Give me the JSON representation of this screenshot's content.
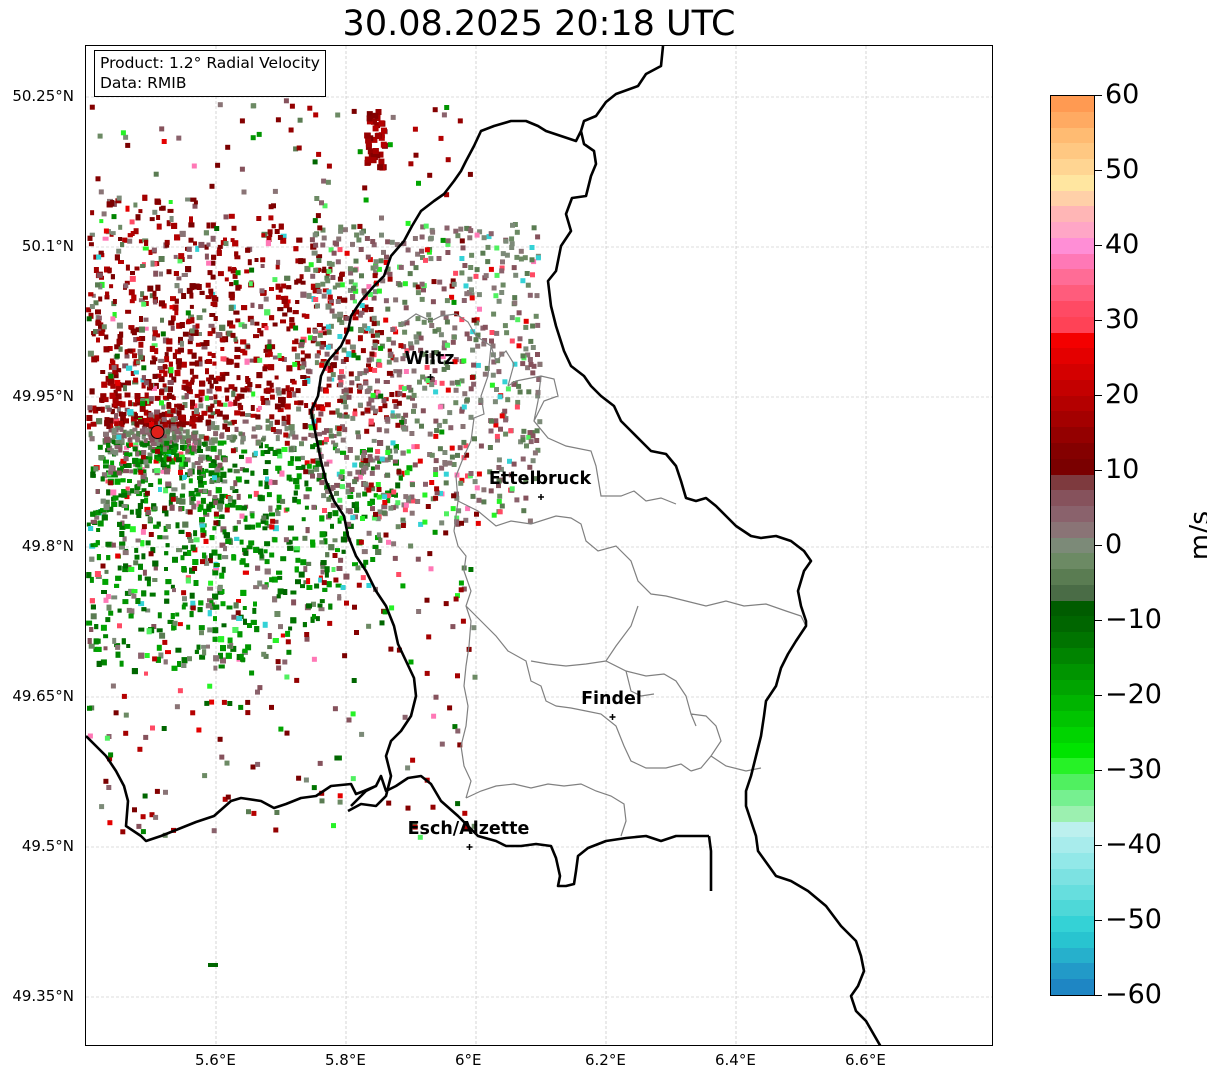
{
  "title": "30.08.2025 20:18 UTC",
  "info": {
    "product": "Product: 1.2° Radial Velocity",
    "data": "Data: RMIB"
  },
  "axes": {
    "lat_ticks": [
      "50.25°N",
      "50.1°N",
      "49.95°N",
      "49.8°N",
      "49.65°N",
      "49.5°N",
      "49.35°N"
    ],
    "lon_ticks": [
      "5.6°E",
      "5.8°E",
      "6°E",
      "6.2°E",
      "6.4°E",
      "6.6°E"
    ],
    "gridlines": true
  },
  "cities": [
    {
      "name": "Wiltz",
      "lon": 5.93,
      "lat": 49.97
    },
    {
      "name": "Ettelbruck",
      "lon": 6.1,
      "lat": 49.85
    },
    {
      "name": "Findel",
      "lon": 6.21,
      "lat": 49.63
    },
    {
      "name": "Esch/Alzette",
      "lon": 5.99,
      "lat": 49.5
    }
  ],
  "radar": {
    "lon": 5.51,
    "lat": 49.915,
    "marker_color": "#e0201a"
  },
  "colorbar": {
    "unit": "m/s",
    "min": -60,
    "max": 60,
    "tick_labels": [
      "60",
      "50",
      "40",
      "30",
      "20",
      "10",
      "0",
      "−10",
      "−20",
      "−30",
      "−40",
      "−50",
      "−60"
    ],
    "colors_top_to_bottom": [
      "#ff9a52",
      "#ffaa62",
      "#ffbb72",
      "#ffc882",
      "#ffd592",
      "#ffe6a0",
      "#ffd0a8",
      "#ffb6b6",
      "#ffa6c6",
      "#ff8ed6",
      "#ff78b6",
      "#ff6c96",
      "#ff5c7c",
      "#ff4a64",
      "#ff4256",
      "#f40000",
      "#e40000",
      "#d40000",
      "#c40000",
      "#b40000",
      "#a40000",
      "#940000",
      "#840000",
      "#7a0000",
      "#7e3a3e",
      "#86525c",
      "#8a626c",
      "#8a7476",
      "#7c8a78",
      "#6c8a64",
      "#5a7c52",
      "#4a6c46",
      "#005c00",
      "#006600",
      "#007400",
      "#008400",
      "#009400",
      "#00a400",
      "#00b400",
      "#00c400",
      "#00d400",
      "#00e400",
      "#26f226",
      "#50f060",
      "#76f090",
      "#9cf0b0",
      "#bcf0ee",
      "#a8ecec",
      "#92e8e8",
      "#7ce2e2",
      "#66dede",
      "#4ed8d8",
      "#34d2d6",
      "#28c4d0",
      "#26b0cc",
      "#229ac8",
      "#1e86c4"
    ]
  }
}
